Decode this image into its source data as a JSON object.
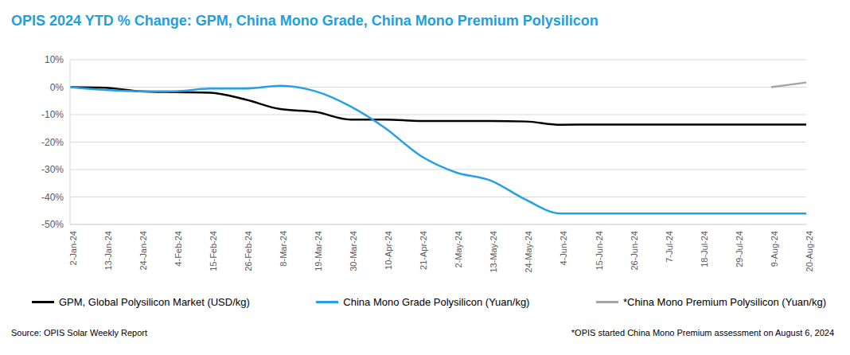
{
  "chart_data": {
    "type": "line",
    "title": "OPIS 2024 YTD % Change: GPM, China Mono Grade, China Mono Premium Polysilicon",
    "categories": [
      "2-Jan-24",
      "13-Jan-24",
      "24-Jan-24",
      "4-Feb-24",
      "15-Feb-24",
      "26-Feb-24",
      "8-Mar-24",
      "19-Mar-24",
      "30-Mar-24",
      "10-Apr-24",
      "21-Apr-24",
      "2-May-24",
      "13-May-24",
      "24-May-24",
      "4-Jun-24",
      "15-Jun-24",
      "26-Jun-24",
      "7-Jul-24",
      "18-Jul-24",
      "29-Jul-24",
      "9-Aug-24",
      "20-Aug-24"
    ],
    "series": [
      {
        "name": "GPM, Global Polysilicon Market (USD/kg)",
        "color": "#000000",
        "values": [
          0,
          -0.2,
          -1.5,
          -1.8,
          -2,
          -4.5,
          -8,
          -9,
          -11.8,
          -11.8,
          -12.3,
          -12.3,
          -12.3,
          -12.5,
          -13.7,
          -13.6,
          -13.6,
          -13.6,
          -13.6,
          -13.6,
          -13.6,
          -13.6
        ]
      },
      {
        "name": "China Mono Grade Polysilicon (Yuan/kg)",
        "color": "#25a0e6",
        "values": [
          0,
          -1,
          -1.5,
          -1.5,
          -0.5,
          -0.5,
          0.5,
          -1.5,
          -7,
          -15,
          -25,
          -31,
          -34,
          -41,
          -46,
          -46,
          -46,
          -46,
          -46,
          -46,
          -46,
          -46
        ]
      },
      {
        "name": "*China Mono Premium Polysilicon (Yuan/kg)",
        "color": "#a6a6a6",
        "values": [
          null,
          null,
          null,
          null,
          null,
          null,
          null,
          null,
          null,
          null,
          null,
          null,
          null,
          null,
          null,
          null,
          null,
          null,
          null,
          null,
          0,
          1.7
        ]
      }
    ],
    "ylim": [
      -50,
      10
    ],
    "yticks": [
      {
        "value": -50,
        "label": "-50%"
      },
      {
        "value": -40,
        "label": "-40%"
      },
      {
        "value": -30,
        "label": "-30%"
      },
      {
        "value": -20,
        "label": "-20%"
      },
      {
        "value": -10,
        "label": "-10%"
      },
      {
        "value": 0,
        "label": "0%"
      },
      {
        "value": 10,
        "label": "10%"
      }
    ],
    "grid": true,
    "legend": "bottom",
    "annotations": [
      "Source: OPIS Solar Weekly Report",
      "*OPIS started China Mono Premium assessment on August 6, 2024"
    ]
  }
}
